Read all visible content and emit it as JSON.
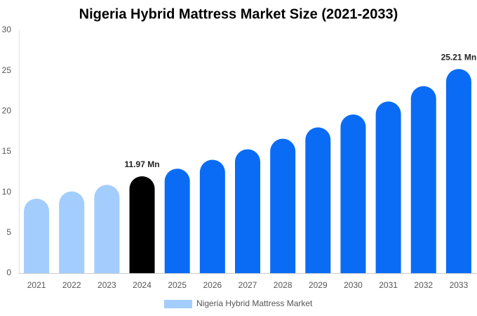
{
  "chart_data": {
    "type": "bar",
    "title": "Nigeria Hybrid Mattress Market Size (2021-2033)",
    "categories": [
      "2021",
      "2022",
      "2023",
      "2024",
      "2025",
      "2026",
      "2027",
      "2028",
      "2029",
      "2030",
      "2031",
      "2032",
      "2033"
    ],
    "series": [
      {
        "name": "Nigeria Hybrid Mattress Market",
        "color": "#a3cdfd",
        "values": [
          9.2,
          10.1,
          10.9,
          11.97,
          12.9,
          14.0,
          15.3,
          16.6,
          18.0,
          19.6,
          21.2,
          23.1,
          25.21
        ],
        "value_labels": [
          null,
          null,
          null,
          "11.97 Mn",
          null,
          null,
          null,
          null,
          null,
          null,
          null,
          null,
          "25.21 Mn"
        ],
        "bar_colors": [
          "#a3cdfd",
          "#a3cdfd",
          "#a3cdfd",
          "#000000",
          "#0a6cf5",
          "#0a6cf5",
          "#0a6cf5",
          "#0a6cf5",
          "#0a6cf5",
          "#0a6cf5",
          "#0a6cf5",
          "#0a6cf5",
          "#0a6cf5"
        ]
      }
    ],
    "ylim": [
      0,
      30
    ],
    "yticks": [
      0,
      5,
      10,
      15,
      20,
      25,
      30
    ],
    "grid": false,
    "legend": "bottom"
  }
}
